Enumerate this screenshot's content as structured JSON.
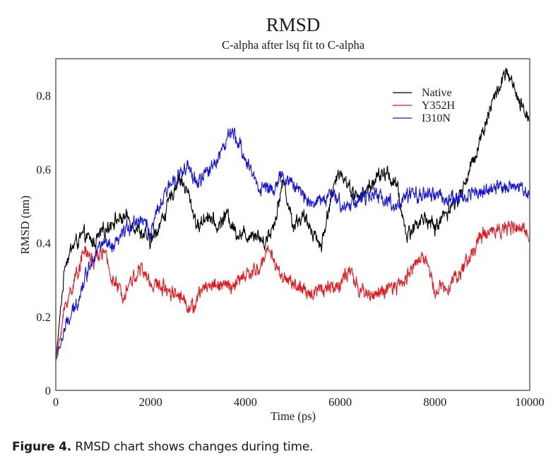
{
  "chart_data": {
    "type": "line",
    "title": "RMSD",
    "subtitle": "C-alpha after lsq fit to C-alpha",
    "xlabel": "Time (ps)",
    "ylabel": "RMSD (nm)",
    "xlim": [
      0,
      10000
    ],
    "ylim": [
      0,
      0.9
    ],
    "xticks": [
      0,
      2000,
      4000,
      6000,
      8000,
      10000
    ],
    "xtick_labels": [
      "0",
      "2000",
      "4000",
      "6000",
      "8000",
      "10000"
    ],
    "yticks": [
      0,
      0.2,
      0.4,
      0.6,
      0.8
    ],
    "ytick_labels": [
      "0",
      "0.2",
      "0.4",
      "0.6",
      "0.8"
    ],
    "grid": false,
    "legend_position": "top-right",
    "series": [
      {
        "name": "Native",
        "color": "#000000",
        "x": [
          0,
          200,
          400,
          600,
          800,
          1000,
          1200,
          1500,
          1800,
          2000,
          2300,
          2600,
          2800,
          3000,
          3200,
          3400,
          3600,
          3800,
          4000,
          4200,
          4400,
          4600,
          4800,
          5000,
          5200,
          5400,
          5600,
          5800,
          6000,
          6200,
          6400,
          6600,
          6800,
          7000,
          7200,
          7400,
          7600,
          7800,
          8000,
          8200,
          8500,
          8800,
          9000,
          9200,
          9500,
          9600,
          9800,
          10000
        ],
        "y": [
          0.08,
          0.35,
          0.4,
          0.42,
          0.4,
          0.43,
          0.46,
          0.47,
          0.43,
          0.4,
          0.48,
          0.58,
          0.53,
          0.44,
          0.48,
          0.44,
          0.48,
          0.43,
          0.42,
          0.43,
          0.4,
          0.45,
          0.57,
          0.45,
          0.47,
          0.44,
          0.39,
          0.52,
          0.6,
          0.55,
          0.52,
          0.55,
          0.58,
          0.59,
          0.55,
          0.42,
          0.45,
          0.47,
          0.44,
          0.48,
          0.52,
          0.62,
          0.7,
          0.78,
          0.86,
          0.84,
          0.77,
          0.74
        ]
      },
      {
        "name": "Y352H",
        "color": "#e8141a",
        "x": [
          0,
          200,
          400,
          600,
          800,
          1000,
          1200,
          1400,
          1600,
          1800,
          2000,
          2300,
          2600,
          2900,
          3100,
          3400,
          3700,
          4000,
          4300,
          4500,
          4700,
          5000,
          5300,
          5600,
          5900,
          6200,
          6400,
          6700,
          7000,
          7300,
          7600,
          7800,
          8000,
          8300,
          8600,
          8800,
          9000,
          9300,
          9600,
          10000
        ],
        "y": [
          0.08,
          0.23,
          0.3,
          0.38,
          0.35,
          0.38,
          0.3,
          0.26,
          0.3,
          0.33,
          0.29,
          0.28,
          0.26,
          0.22,
          0.28,
          0.29,
          0.28,
          0.31,
          0.33,
          0.39,
          0.32,
          0.29,
          0.26,
          0.28,
          0.28,
          0.32,
          0.27,
          0.26,
          0.27,
          0.29,
          0.35,
          0.36,
          0.27,
          0.29,
          0.33,
          0.38,
          0.42,
          0.44,
          0.44,
          0.43
        ]
      },
      {
        "name": "I310N",
        "color": "#1414e0",
        "x": [
          0,
          200,
          400,
          600,
          800,
          1000,
          1200,
          1500,
          1800,
          2000,
          2200,
          2500,
          2800,
          3000,
          3300,
          3500,
          3700,
          3900,
          4100,
          4300,
          4600,
          4800,
          5000,
          5300,
          5500,
          5800,
          6100,
          6400,
          6800,
          7200,
          7500,
          8000,
          8300,
          8600,
          8800,
          9100,
          9400,
          9700,
          10000
        ],
        "y": [
          0.08,
          0.17,
          0.22,
          0.3,
          0.37,
          0.4,
          0.38,
          0.44,
          0.47,
          0.43,
          0.5,
          0.58,
          0.6,
          0.56,
          0.61,
          0.65,
          0.7,
          0.66,
          0.6,
          0.55,
          0.55,
          0.58,
          0.56,
          0.52,
          0.51,
          0.53,
          0.5,
          0.52,
          0.53,
          0.5,
          0.53,
          0.53,
          0.52,
          0.52,
          0.54,
          0.54,
          0.55,
          0.56,
          0.53
        ]
      }
    ]
  },
  "caption": {
    "label": "Figure 4.",
    "text": " RMSD chart shows changes during time."
  }
}
